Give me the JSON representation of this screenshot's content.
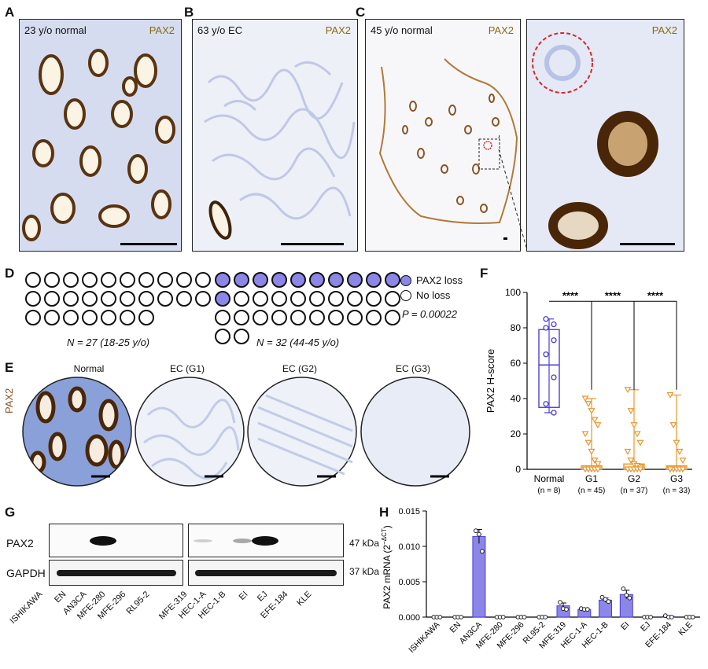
{
  "panels": {
    "A": {
      "label": "A",
      "caption": "23 y/o normal",
      "stain": "PAX2"
    },
    "B": {
      "label": "B",
      "caption": "63 y/o EC",
      "stain": "PAX2"
    },
    "C": {
      "label": "C",
      "caption": "45 y/o normal",
      "stain": "PAX2",
      "zoom_stain": "PAX2"
    },
    "D": {
      "label": "D",
      "legend_loss": "PAX2 loss",
      "legend_noloss": "No loss",
      "pvalue": "P = 0.00022",
      "group1": {
        "n_text": "N = 27 (18-25 y/o)",
        "total": 27,
        "loss": 0
      },
      "group2": {
        "n_text": "N = 32 (44-45 y/o)",
        "total": 32,
        "loss": 11
      }
    },
    "E": {
      "label": "E",
      "stain": "PAX2",
      "titles": [
        "Normal",
        "EC (G1)",
        "EC (G2)",
        "EC (G3)"
      ]
    },
    "G": {
      "label": "G",
      "rows": [
        "PAX2",
        "GAPDH"
      ],
      "kda": [
        "47 kDa",
        "37 kDa"
      ],
      "lanes": [
        "ISHIKAWA",
        "EN",
        "AN3CA",
        "MFE-280",
        "MFE-296",
        "RL95-2",
        "MFE-319",
        "HEC-1-A",
        "HEC-1-B",
        "EI",
        "EJ",
        "EFE-184",
        "KLE"
      ]
    }
  },
  "colors": {
    "pax2_brown": "#5a3310",
    "hematoxylin": "#c9d3ee",
    "accent_blue": "#4a3fd8",
    "accent_orange": "#e8962e"
  },
  "chart_data": [
    {
      "panel": "F",
      "label": "F",
      "type": "box-scatter",
      "ylabel": "PAX2 H-score",
      "ylim": [
        0,
        100
      ],
      "yticks": [
        0,
        20,
        40,
        60,
        80,
        100
      ],
      "categories": [
        "Normal",
        "G1",
        "G2",
        "G3"
      ],
      "ns": [
        "(n = 8)",
        "(n = 45)",
        "(n = 37)",
        "(n = 33)"
      ],
      "significance": "****",
      "series": [
        {
          "values": [
            85,
            82,
            80,
            73,
            65,
            52,
            37,
            32
          ],
          "box": {
            "min": 32,
            "q1": 35,
            "median": 59,
            "q3": 79,
            "max": 85
          }
        },
        {
          "values": [
            40,
            37,
            33,
            28,
            25,
            20,
            15,
            10,
            5,
            3,
            0,
            0,
            0,
            0,
            0
          ],
          "box": {
            "min": 0,
            "q1": 0,
            "median": 0,
            "q3": 2,
            "max": 40
          }
        },
        {
          "values": [
            45,
            33,
            25,
            20,
            15,
            10,
            5,
            3,
            2,
            1,
            0,
            0,
            0,
            0,
            0
          ],
          "box": {
            "min": 0,
            "q1": 0,
            "median": 0,
            "q3": 3,
            "max": 45
          }
        },
        {
          "values": [
            42,
            25,
            15,
            10,
            5,
            0,
            0,
            0,
            0,
            0,
            0
          ],
          "box": {
            "min": 0,
            "q1": 0,
            "median": 0,
            "q3": 2,
            "max": 42
          }
        }
      ]
    },
    {
      "panel": "H",
      "label": "H",
      "type": "bar",
      "ylabel": "PAX2 mRNA (2",
      "ylabel_sup": "−ΔCT",
      "ylabel_end": ")",
      "ylim": [
        0,
        0.015
      ],
      "yticks": [
        "0.000",
        "0.005",
        "0.010",
        "0.015"
      ],
      "categories": [
        "ISHIKAWA",
        "EN",
        "AN3CA",
        "MFE-280",
        "MFE-296",
        "RL95-2",
        "MFE-319",
        "HEC-1-A",
        "HEC-1-B",
        "EI",
        "EJ",
        "EFE-184",
        "KLE"
      ],
      "values": [
        0,
        0,
        0.0114,
        0,
        0,
        0,
        0.0016,
        0.0011,
        0.0024,
        0.0032,
        0,
        0.0001,
        0
      ],
      "errors": [
        0,
        0,
        0.001,
        0,
        0,
        0,
        0.0004,
        0.0001,
        0.0003,
        0.0006,
        0,
        0.0001,
        0
      ],
      "points": [
        [
          0,
          0,
          0
        ],
        [
          0,
          0,
          0
        ],
        [
          0.0122,
          0.0117,
          0.0093
        ],
        [
          0,
          0,
          0
        ],
        [
          0,
          0,
          0
        ],
        [
          0,
          0,
          0
        ],
        [
          0.0021,
          0.0012,
          0.0011
        ],
        [
          0.0012,
          0.0011,
          0.0011
        ],
        [
          0.0028,
          0.0025,
          0.0022
        ],
        [
          0.004,
          0.0031,
          0.0027
        ],
        [
          0,
          0,
          0
        ],
        [
          0.0002,
          0,
          0
        ],
        [
          0,
          0,
          0
        ]
      ]
    }
  ]
}
